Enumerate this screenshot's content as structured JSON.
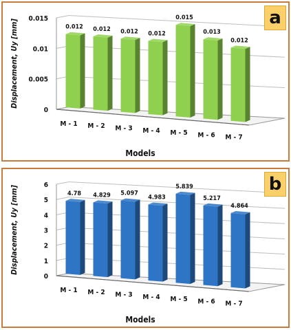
{
  "chart_data": [
    {
      "panel": "a",
      "type": "bar",
      "xlabel": "Models",
      "ylabel": "Displacement, Uy [mm]",
      "categories": [
        "M - 1",
        "M - 2",
        "M - 3",
        "M - 4",
        "M - 5",
        "M - 6",
        "M - 7"
      ],
      "values": [
        0.012,
        0.012,
        0.012,
        0.012,
        0.015,
        0.013,
        0.012
      ],
      "data_labels": [
        "0.012",
        "0.012",
        "0.012",
        "0.012",
        "0.015",
        "0.013",
        "0.012"
      ],
      "ylim": [
        0,
        0.015
      ],
      "yticks": [
        0,
        0.005,
        0.01,
        0.015
      ],
      "ytick_labels": [
        "0",
        "0.005",
        "0.01",
        "0.015"
      ],
      "grid": true,
      "bar_color": "#8fd14f"
    },
    {
      "panel": "b",
      "type": "bar",
      "xlabel": "Models",
      "ylabel": "Displacement, Uy [mm]",
      "categories": [
        "M - 1",
        "M - 2",
        "M - 3",
        "M - 4",
        "M - 5",
        "M - 6",
        "M - 7"
      ],
      "values": [
        4.78,
        4.829,
        5.097,
        4.983,
        5.839,
        5.217,
        4.864
      ],
      "data_labels": [
        "4.78",
        "4.829",
        "5.097",
        "4.983",
        "5.839",
        "5.217",
        "4.864"
      ],
      "ylim": [
        0,
        6
      ],
      "yticks": [
        0,
        1,
        2,
        3,
        4,
        5,
        6
      ],
      "ytick_labels": [
        "0",
        "1",
        "2",
        "3",
        "4",
        "5",
        "6"
      ],
      "grid": true,
      "bar_color": "#2e75c6"
    }
  ]
}
